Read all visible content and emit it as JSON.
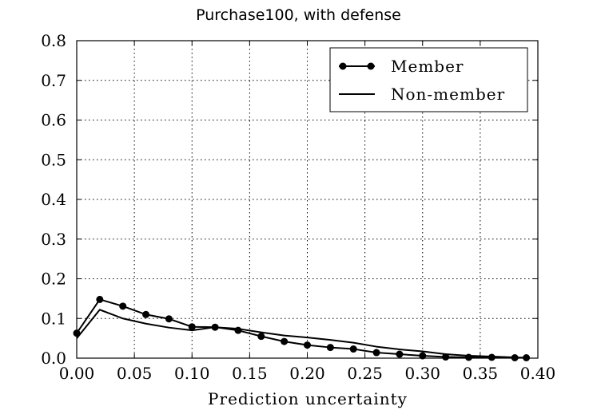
{
  "chart_data": {
    "type": "line",
    "title": "Purchase100, with defense",
    "xlabel": "Prediction uncertainty",
    "ylabel": "",
    "xlim": [
      0.0,
      0.4
    ],
    "ylim": [
      0.0,
      0.8
    ],
    "xticks": [
      0.0,
      0.05,
      0.1,
      0.15,
      0.2,
      0.25,
      0.3,
      0.35,
      0.4
    ],
    "xtick_labels": [
      "0.00",
      "0.05",
      "0.10",
      "0.15",
      "0.20",
      "0.25",
      "0.30",
      "0.35",
      "0.40"
    ],
    "yticks": [
      0.0,
      0.1,
      0.2,
      0.3,
      0.4,
      0.5,
      0.6,
      0.7,
      0.8
    ],
    "ytick_labels": [
      "0.0",
      "0.1",
      "0.2",
      "0.3",
      "0.4",
      "0.5",
      "0.6",
      "0.7",
      "0.8"
    ],
    "grid": true,
    "legend_position": "top-right",
    "series": [
      {
        "name": "Member",
        "marker": "circle",
        "color": "#000000",
        "x": [
          0.0,
          0.02,
          0.04,
          0.06,
          0.08,
          0.1,
          0.12,
          0.14,
          0.16,
          0.18,
          0.2,
          0.22,
          0.24,
          0.26,
          0.28,
          0.3,
          0.32,
          0.34,
          0.36,
          0.38,
          0.39
        ],
        "values": [
          0.063,
          0.148,
          0.131,
          0.11,
          0.099,
          0.079,
          0.078,
          0.07,
          0.055,
          0.042,
          0.033,
          0.027,
          0.023,
          0.014,
          0.01,
          0.006,
          0.003,
          0.002,
          0.002,
          0.001,
          0.001
        ]
      },
      {
        "name": "Non-member",
        "marker": "none",
        "color": "#000000",
        "x": [
          0.0,
          0.02,
          0.04,
          0.06,
          0.08,
          0.1,
          0.12,
          0.14,
          0.16,
          0.18,
          0.2,
          0.22,
          0.24,
          0.26,
          0.28,
          0.3,
          0.32,
          0.34,
          0.36,
          0.38,
          0.39
        ],
        "values": [
          0.05,
          0.122,
          0.1,
          0.087,
          0.077,
          0.07,
          0.078,
          0.074,
          0.065,
          0.057,
          0.052,
          0.046,
          0.039,
          0.029,
          0.022,
          0.017,
          0.01,
          0.006,
          0.004,
          0.002,
          0.001
        ]
      }
    ]
  }
}
